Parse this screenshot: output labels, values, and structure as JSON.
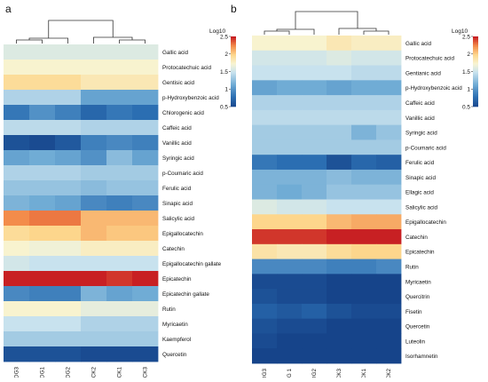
{
  "chart_data": [
    {
      "panel": "a",
      "type": "heatmap",
      "columns": [
        "DG3",
        "DG1",
        "DG2",
        "CK2",
        "CK1",
        "CK3"
      ],
      "rows": [
        "Gallic acid",
        "Protocatechuic acid",
        "Gentisic acid",
        "p-Hydroxybenzoic acid",
        "Chlorogenic acid",
        "Caffeic acid",
        "Vanillic acid",
        "Syringic acid",
        "p-Coumaric acid",
        "Ferulic acid",
        "Sinapic acid",
        "Salicylic acid",
        "Epigallocatechin",
        "Catechin",
        "Epigallocatechin gallate",
        "Epicatechin",
        "Epicatechin gallate",
        "Rutin",
        "Myricaetin",
        "Kaempferol",
        "Quercetin"
      ],
      "values": [
        [
          1.6,
          1.6,
          1.6,
          1.6,
          1.6,
          1.6
        ],
        [
          1.75,
          1.75,
          1.75,
          1.75,
          1.75,
          1.75
        ],
        [
          1.95,
          1.95,
          1.95,
          1.85,
          1.85,
          1.85
        ],
        [
          1.4,
          1.4,
          1.4,
          1.1,
          1.1,
          1.1
        ],
        [
          0.85,
          1.0,
          0.9,
          0.75,
          0.85,
          0.8
        ],
        [
          1.45,
          1.45,
          1.45,
          1.4,
          1.4,
          1.4
        ],
        [
          0.6,
          0.55,
          0.65,
          0.9,
          0.95,
          0.9
        ],
        [
          1.1,
          1.15,
          1.1,
          1.0,
          1.25,
          1.1
        ],
        [
          1.4,
          1.4,
          1.4,
          1.35,
          1.35,
          1.35
        ],
        [
          1.3,
          1.3,
          1.3,
          1.25,
          1.3,
          1.3
        ],
        [
          1.2,
          1.15,
          1.1,
          0.95,
          0.9,
          0.95
        ],
        [
          2.25,
          2.3,
          2.3,
          2.1,
          2.1,
          2.1
        ],
        [
          1.95,
          2.0,
          2.0,
          2.1,
          2.05,
          2.05
        ],
        [
          1.75,
          1.7,
          1.7,
          1.8,
          1.8,
          1.8
        ],
        [
          1.55,
          1.5,
          1.5,
          1.5,
          1.5,
          1.5
        ],
        [
          2.5,
          2.5,
          2.5,
          2.5,
          2.45,
          2.5
        ],
        [
          0.95,
          0.9,
          0.9,
          1.2,
          1.1,
          1.15
        ],
        [
          1.75,
          1.75,
          1.75,
          1.65,
          1.65,
          1.65
        ],
        [
          1.5,
          1.5,
          1.5,
          1.4,
          1.4,
          1.4
        ],
        [
          1.35,
          1.35,
          1.35,
          1.35,
          1.35,
          1.35
        ],
        [
          0.6,
          0.6,
          0.6,
          0.55,
          0.55,
          0.55
        ]
      ],
      "colorbar": {
        "label": "Log10",
        "ticks": [
          "2.5",
          "2",
          "1.5",
          "1",
          "0.5"
        ],
        "range": [
          0.5,
          2.5
        ]
      }
    },
    {
      "panel": "b",
      "type": "heatmap",
      "columns": [
        "DG3",
        "DG 1",
        "DG2",
        "CK3",
        "CK1",
        "CK2"
      ],
      "rows": [
        "Gallic acid",
        "Protocatechuic acid",
        "Gentianic acid",
        "p-Hydroxybenzoic acid",
        "Caffeic acid",
        "Vanillic acid",
        "Syringic acid",
        "p-Coumaric acid",
        "Ferulic acid",
        "Sinapic acid",
        "Ellagic acid",
        "Salicylic acid",
        "Epigallocatechin",
        "Catechin",
        "Epicatechin",
        "Rutin",
        "Myricaetin",
        "Quercitrin",
        "Fisetin",
        "Quercetin",
        "Luteolin",
        "Isorhamnetin"
      ],
      "values": [
        [
          1.75,
          1.75,
          1.75,
          1.85,
          1.8,
          1.8
        ],
        [
          1.55,
          1.55,
          1.55,
          1.6,
          1.55,
          1.55
        ],
        [
          1.5,
          1.5,
          1.5,
          1.5,
          1.45,
          1.45
        ],
        [
          1.1,
          1.15,
          1.15,
          1.1,
          1.15,
          1.15
        ],
        [
          1.4,
          1.4,
          1.4,
          1.4,
          1.4,
          1.4
        ],
        [
          1.45,
          1.45,
          1.45,
          1.45,
          1.45,
          1.45
        ],
        [
          1.35,
          1.35,
          1.35,
          1.35,
          1.2,
          1.3
        ],
        [
          1.35,
          1.35,
          1.35,
          1.35,
          1.35,
          1.35
        ],
        [
          0.85,
          0.8,
          0.8,
          0.6,
          0.75,
          0.7
        ],
        [
          1.2,
          1.2,
          1.2,
          1.25,
          1.2,
          1.2
        ],
        [
          1.2,
          1.15,
          1.2,
          1.3,
          1.3,
          1.3
        ],
        [
          1.6,
          1.55,
          1.55,
          1.5,
          1.5,
          1.5
        ],
        [
          2.0,
          2.0,
          2.0,
          2.1,
          2.15,
          2.15
        ],
        [
          2.45,
          2.45,
          2.45,
          2.5,
          2.5,
          2.5
        ],
        [
          1.9,
          1.85,
          1.85,
          1.95,
          2.0,
          2.0
        ],
        [
          0.95,
          0.95,
          0.95,
          0.9,
          0.9,
          0.95
        ],
        [
          0.55,
          0.55,
          0.55,
          0.5,
          0.5,
          0.5
        ],
        [
          0.6,
          0.55,
          0.55,
          0.5,
          0.45,
          0.5
        ],
        [
          0.7,
          0.65,
          0.7,
          0.6,
          0.55,
          0.55
        ],
        [
          0.6,
          0.55,
          0.55,
          0.5,
          0.5,
          0.5
        ],
        [
          0.55,
          0.5,
          0.5,
          0.45,
          0.45,
          0.45
        ],
        [
          0.5,
          0.45,
          0.45,
          0.45,
          0.4,
          0.45
        ]
      ],
      "colorbar": {
        "label": "Log10",
        "ticks": [
          "2.5",
          "2",
          "1.5",
          "1",
          "0.5"
        ],
        "range": [
          0.5,
          2.5
        ]
      }
    }
  ]
}
